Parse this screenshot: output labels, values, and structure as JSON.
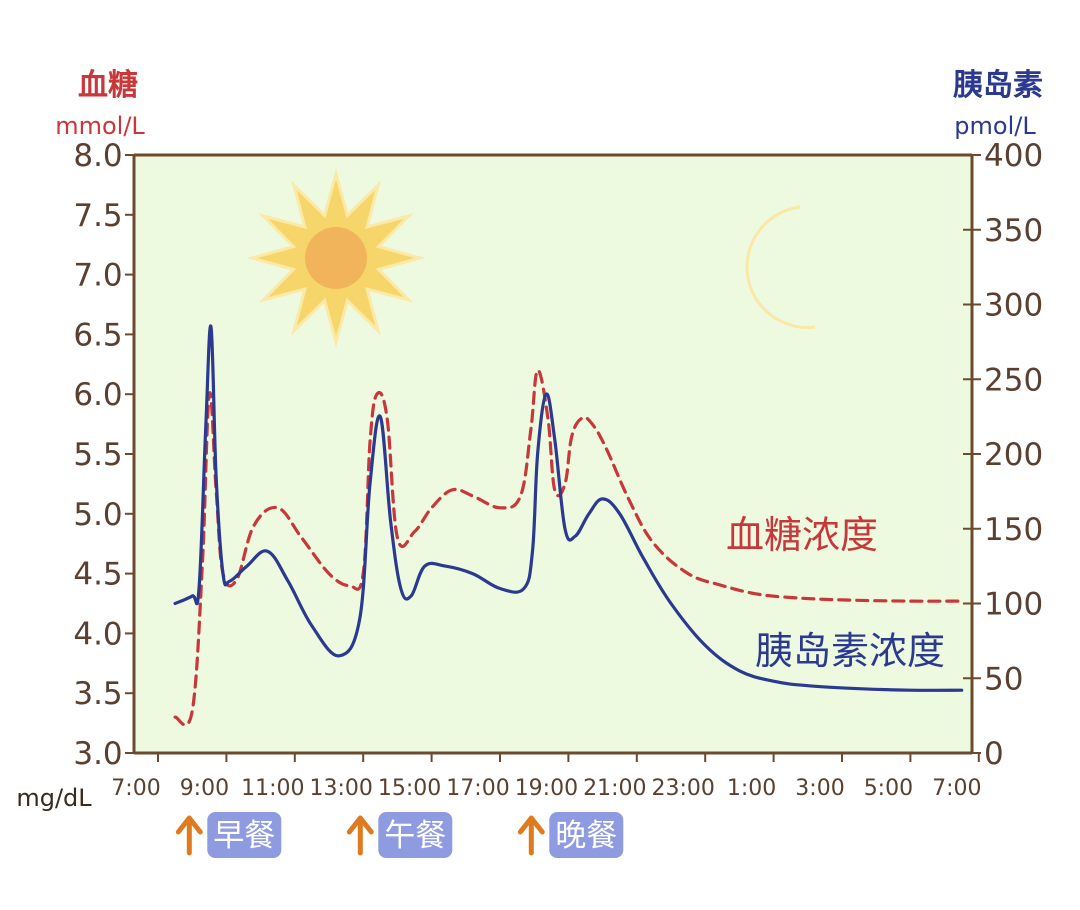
{
  "left_axis": {
    "title": "血糖",
    "unit": "mmol/L"
  },
  "right_axis": {
    "title": "胰岛素",
    "unit": "pmol/L"
  },
  "x_unit_label": "mg/dL",
  "meals": [
    {
      "label": "早餐",
      "time": 8.5
    },
    {
      "label": "午餐",
      "time": 13.5
    },
    {
      "label": "晚餐",
      "time": 18.5
    }
  ],
  "colors": {
    "glucose": "#c8373a",
    "insulin": "#2b3990",
    "plot_bg": "#edfadf",
    "frame": "#6b4a2f",
    "meal_badge": "#8e9be0",
    "meal_arrow": "#e07a1f",
    "sun": "#f6d56a",
    "sun_core": "#f2b45a",
    "moon": "#f7d06a"
  },
  "icons": [
    "sun-icon",
    "moon-icon",
    "up-arrow-icon"
  ],
  "chart_data": {
    "type": "line",
    "x_tick_labels": [
      "7:00",
      "9:00",
      "11:00",
      "13:00",
      "15:00",
      "17:00",
      "19:00",
      "21:00",
      "23:00",
      "1:00",
      "3:00",
      "5:00",
      "7:00"
    ],
    "x_tick_hours": [
      7,
      9,
      11,
      13,
      15,
      17,
      19,
      21,
      23,
      25,
      27,
      29,
      31
    ],
    "y_left": {
      "range": [
        3.0,
        8.0
      ],
      "ticks": [
        "3.0",
        "3.5",
        "4.0",
        "4.5",
        "5.0",
        "5.5",
        "6.0",
        "6.5",
        "7.0",
        "7.5",
        "8.0"
      ]
    },
    "y_right": {
      "range": [
        0,
        400
      ],
      "ticks": [
        "0",
        "50",
        "100",
        "150",
        "200",
        "250",
        "300",
        "350",
        "400"
      ]
    },
    "series": [
      {
        "name": "血糖浓度",
        "axis": "left",
        "style": "dashed",
        "x": [
          7.5,
          8.0,
          8.3,
          8.5,
          8.7,
          8.9,
          9.3,
          9.8,
          10.5,
          11.2,
          12.0,
          12.6,
          13.0,
          13.2,
          13.4,
          13.7,
          14.0,
          14.5,
          15.0,
          15.6,
          16.2,
          17.0,
          17.6,
          17.9,
          18.1,
          18.4,
          18.6,
          18.9,
          19.1,
          19.4,
          19.7,
          20.1,
          20.8,
          21.5,
          22.5,
          23.5,
          24.5,
          25.5,
          27.0,
          29.0,
          30.5
        ],
        "y": [
          3.3,
          3.35,
          4.6,
          6.0,
          5.2,
          4.5,
          4.45,
          4.9,
          5.05,
          4.8,
          4.5,
          4.4,
          4.5,
          5.6,
          6.0,
          5.8,
          4.8,
          4.85,
          5.05,
          5.2,
          5.15,
          5.05,
          5.15,
          5.7,
          6.2,
          5.8,
          5.2,
          5.25,
          5.65,
          5.8,
          5.75,
          5.55,
          5.1,
          4.75,
          4.5,
          4.4,
          4.33,
          4.3,
          4.28,
          4.27,
          4.27
        ]
      },
      {
        "name": "胰岛素浓度",
        "axis": "right",
        "style": "solid",
        "x": [
          7.5,
          8.0,
          8.2,
          8.4,
          8.55,
          8.7,
          8.9,
          9.1,
          9.6,
          10.2,
          10.8,
          11.5,
          12.3,
          12.9,
          13.2,
          13.5,
          13.8,
          14.1,
          14.4,
          14.8,
          15.4,
          16.2,
          17.0,
          17.7,
          17.95,
          18.1,
          18.35,
          18.6,
          18.9,
          19.2,
          19.6,
          20.0,
          20.5,
          21.2,
          22.0,
          23.0,
          24.0,
          25.0,
          26.0,
          27.5,
          29.0,
          30.5
        ],
        "y": [
          100,
          105,
          110,
          220,
          285,
          185,
          120,
          115,
          125,
          135,
          115,
          85,
          65,
          90,
          180,
          225,
          155,
          110,
          105,
          125,
          125,
          120,
          110,
          110,
          135,
          200,
          240,
          210,
          150,
          145,
          160,
          170,
          160,
          130,
          100,
          72,
          55,
          48,
          45,
          43,
          42,
          42
        ]
      }
    ]
  }
}
